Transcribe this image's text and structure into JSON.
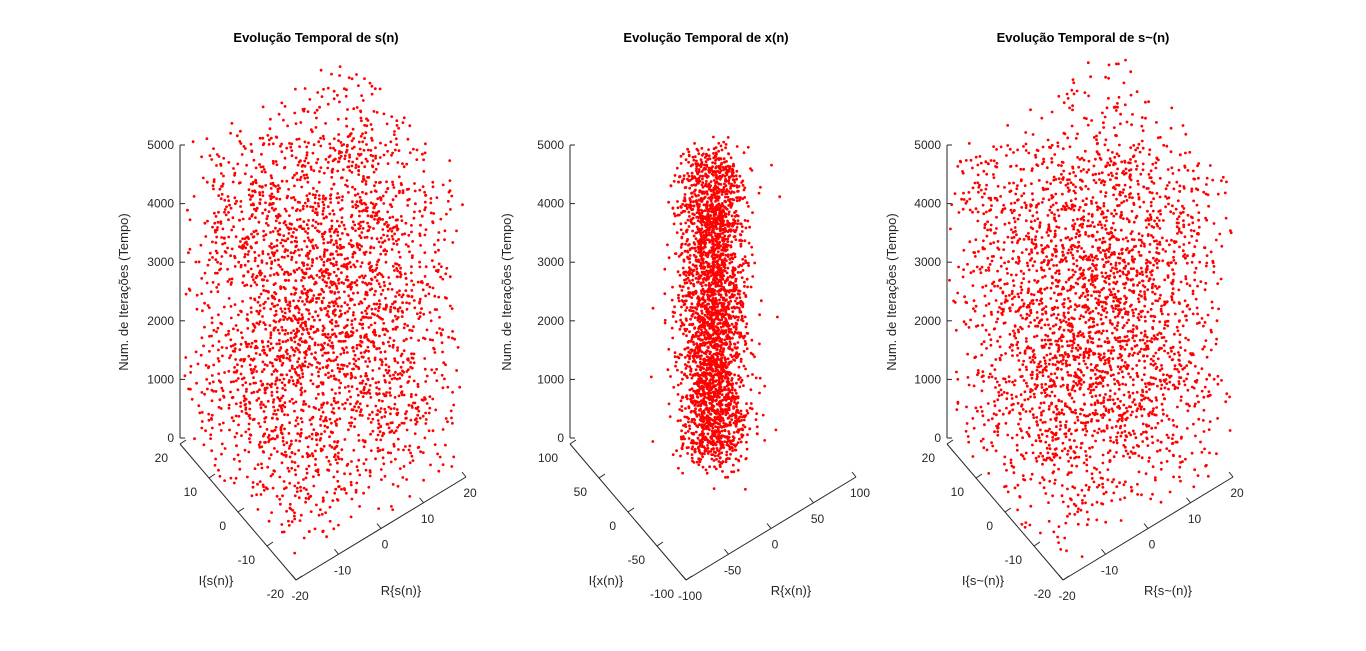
{
  "chart_data": [
    {
      "type": "scatter",
      "title": "Evolução Temporal de s(n)",
      "xlabel": "R{s(n)}",
      "ylabel": "I{s(n)}",
      "zlabel": "Num. de Iterações (Tempo)",
      "xlim": [
        -20,
        20
      ],
      "ylim": [
        -20,
        20
      ],
      "zlim": [
        0,
        5000
      ],
      "xticks": [
        "-20",
        "-10",
        "0",
        "10",
        "20"
      ],
      "yticks": [
        "-20",
        "-10",
        "0",
        "10",
        "20"
      ],
      "zticks": [
        "0",
        "1000",
        "2000",
        "3000",
        "4000",
        "5000"
      ],
      "marker_color": "#ff0000",
      "grid": false,
      "points": 5000,
      "distribution": "uniform square, |R|,|I| <= 20 (approx.)"
    },
    {
      "type": "scatter",
      "title": "Evolução Temporal de x(n)",
      "xlabel": "R{x(n)}",
      "ylabel": "I{x(n)}",
      "zlabel": "Num. de Iterações (Tempo)",
      "xlim": [
        -100,
        100
      ],
      "ylim": [
        -100,
        100
      ],
      "zlim": [
        0,
        5000
      ],
      "xticks": [
        "-100",
        "-50",
        "0",
        "50",
        "100"
      ],
      "yticks": [
        "-100",
        "-50",
        "0",
        "50",
        "100"
      ],
      "zticks": [
        "0",
        "1000",
        "2000",
        "3000",
        "4000",
        "5000"
      ],
      "marker_color": "#ff0000",
      "grid": false,
      "points": 5000,
      "distribution": "concentrated near origin, |R|,|I| mostly <= 40 (approx.)"
    },
    {
      "type": "scatter",
      "title": "Evolução Temporal de s~(n)",
      "xlabel": "R{s~(n)}",
      "ylabel": "I{s~(n)}",
      "zlabel": "Num. de Iterações (Tempo)",
      "xlim": [
        -20,
        20
      ],
      "ylim": [
        -20,
        20
      ],
      "zlim": [
        0,
        5000
      ],
      "xticks": [
        "-20",
        "-10",
        "0",
        "10",
        "20"
      ],
      "yticks": [
        "-20",
        "-10",
        "0",
        "10",
        "20"
      ],
      "zticks": [
        "0",
        "1000",
        "2000",
        "3000",
        "4000",
        "5000"
      ],
      "marker_color": "#ff0000",
      "grid": false,
      "points": 5000,
      "distribution": "uniform square, |R|,|I| <= 20 (approx.)"
    }
  ]
}
